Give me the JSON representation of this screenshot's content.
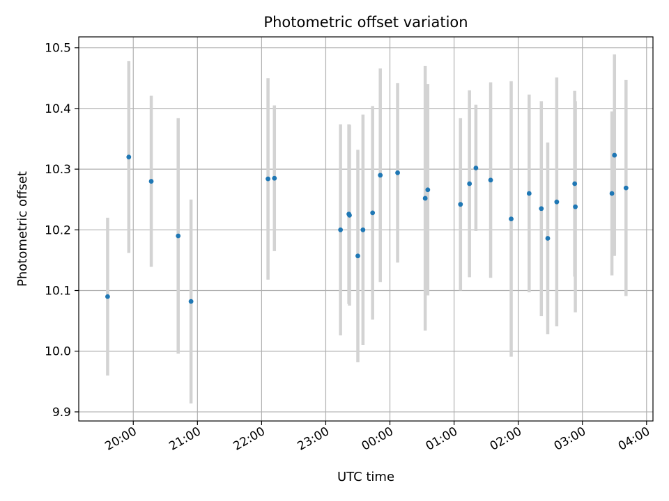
{
  "chart_data": {
    "type": "scatter",
    "title": "Photometric offset variation",
    "xlabel": "UTC time",
    "ylabel": "Photometric offset",
    "grid": true,
    "xlim_hours": [
      19.15,
      28.1
    ],
    "ylim": [
      9.885,
      10.518
    ],
    "x_tick_hours": [
      20,
      21,
      22,
      23,
      24,
      25,
      26,
      27,
      28
    ],
    "x_tick_labels": [
      "20:00",
      "21:00",
      "22:00",
      "23:00",
      "00:00",
      "01:00",
      "02:00",
      "03:00",
      "04:00"
    ],
    "y_ticks": [
      9.9,
      10.0,
      10.1,
      10.2,
      10.3,
      10.4,
      10.5
    ],
    "y_tick_labels": [
      "9.9",
      "10.0",
      "10.1",
      "10.2",
      "10.3",
      "10.4",
      "10.5"
    ],
    "points_color": "#1f77b4",
    "errorbar_color": "#d3d3d3",
    "series": [
      {
        "name": "offset",
        "x_hours": [
          19.6,
          19.93,
          20.28,
          20.7,
          20.9,
          22.1,
          22.2,
          23.23,
          23.36,
          23.37,
          23.5,
          23.58,
          23.73,
          23.85,
          24.12,
          24.55,
          24.59,
          25.1,
          25.24,
          25.34,
          25.57,
          25.89,
          26.17,
          26.36,
          26.46,
          26.6,
          26.88,
          26.89,
          27.46,
          27.5,
          27.68
        ],
        "y": [
          10.09,
          10.32,
          10.28,
          10.19,
          10.082,
          10.284,
          10.285,
          10.2,
          10.226,
          10.224,
          10.157,
          10.2,
          10.228,
          10.29,
          10.294,
          10.252,
          10.266,
          10.242,
          10.276,
          10.302,
          10.282,
          10.218,
          10.26,
          10.235,
          10.186,
          10.246,
          10.276,
          10.238,
          10.26,
          10.323,
          10.269
        ],
        "err": [
          0.13,
          0.158,
          0.141,
          0.194,
          0.168,
          0.166,
          0.12,
          0.174,
          0.148,
          0.149,
          0.175,
          0.19,
          0.176,
          0.176,
          0.148,
          0.218,
          0.174,
          0.142,
          0.154,
          0.104,
          0.161,
          0.227,
          0.163,
          0.177,
          0.158,
          0.205,
          0.153,
          0.174,
          0.135,
          0.166,
          0.178
        ]
      }
    ]
  }
}
